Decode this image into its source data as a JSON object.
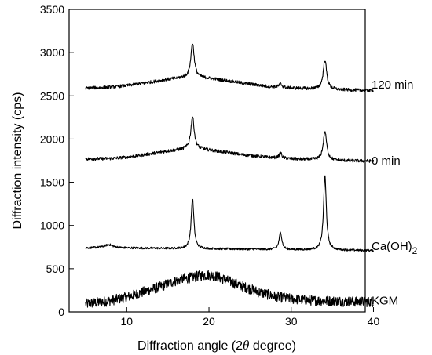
{
  "chart_data": {
    "type": "line",
    "xlabel_prefix": "Diffraction angle (2",
    "xlabel_symbol": "θ",
    "xlabel_suffix": " degree)",
    "ylabel": "Diffraction intensity (cps)",
    "xlim": [
      3,
      39
    ],
    "ylim": [
      0,
      3500
    ],
    "x_ticks": [
      10,
      20,
      30,
      40
    ],
    "y_ticks": [
      0,
      500,
      1000,
      1500,
      2000,
      2500,
      3000,
      3500
    ],
    "grid": false,
    "series": [
      {
        "name": "KGM",
        "label_main": "KGM",
        "label_sub": "",
        "label_y": 130,
        "noise": 60,
        "x_range": [
          5,
          40
        ],
        "points": [
          [
            5,
            90
          ],
          [
            8,
            130
          ],
          [
            10,
            170
          ],
          [
            12,
            230
          ],
          [
            14,
            290
          ],
          [
            16,
            360
          ],
          [
            18,
            400
          ],
          [
            19,
            420
          ],
          [
            20,
            430
          ],
          [
            21,
            410
          ],
          [
            22,
            370
          ],
          [
            24,
            300
          ],
          [
            26,
            230
          ],
          [
            28,
            180
          ],
          [
            30,
            150
          ],
          [
            32,
            135
          ],
          [
            35,
            125
          ],
          [
            38,
            120
          ],
          [
            40,
            115
          ]
        ],
        "peaks": []
      },
      {
        "name": "Ca(OH)2",
        "label_main": "Ca(OH)",
        "label_sub": "2",
        "label_y": 760,
        "noise": 12,
        "x_range": [
          5,
          40
        ],
        "points": [
          [
            5,
            740
          ],
          [
            8,
            750
          ],
          [
            10,
            740
          ],
          [
            15,
            735
          ],
          [
            20,
            730
          ],
          [
            25,
            725
          ],
          [
            30,
            720
          ],
          [
            35,
            715
          ],
          [
            40,
            710
          ]
        ],
        "peaks": [
          [
            7.8,
            30,
            0.5
          ],
          [
            18.0,
            580,
            0.2
          ],
          [
            28.7,
            200,
            0.2
          ],
          [
            34.1,
            860,
            0.2
          ]
        ]
      },
      {
        "name": "0 min",
        "label_main": "0 min",
        "label_sub": "",
        "label_y": 1750,
        "noise": 18,
        "x_range": [
          5,
          40
        ],
        "points": [
          [
            5,
            1770
          ],
          [
            8,
            1775
          ],
          [
            10,
            1790
          ],
          [
            13,
            1830
          ],
          [
            15,
            1860
          ],
          [
            17,
            1880
          ],
          [
            19,
            1880
          ],
          [
            21,
            1860
          ],
          [
            24,
            1820
          ],
          [
            27,
            1790
          ],
          [
            30,
            1770
          ],
          [
            33,
            1760
          ],
          [
            36,
            1750
          ],
          [
            40,
            1745
          ]
        ],
        "peaks": [
          [
            18.0,
            380,
            0.25
          ],
          [
            28.7,
            60,
            0.2
          ],
          [
            34.1,
            330,
            0.25
          ]
        ]
      },
      {
        "name": "120 min",
        "label_main": "120 min",
        "label_sub": "",
        "label_y": 2630,
        "noise": 18,
        "x_range": [
          5,
          40
        ],
        "points": [
          [
            5,
            2590
          ],
          [
            8,
            2600
          ],
          [
            10,
            2620
          ],
          [
            13,
            2660
          ],
          [
            15,
            2690
          ],
          [
            17,
            2710
          ],
          [
            19,
            2710
          ],
          [
            21,
            2690
          ],
          [
            24,
            2650
          ],
          [
            27,
            2610
          ],
          [
            30,
            2590
          ],
          [
            33,
            2580
          ],
          [
            36,
            2570
          ],
          [
            40,
            2560
          ]
        ],
        "peaks": [
          [
            18.0,
            400,
            0.25
          ],
          [
            28.7,
            40,
            0.2
          ],
          [
            34.1,
            340,
            0.25
          ]
        ]
      }
    ]
  }
}
